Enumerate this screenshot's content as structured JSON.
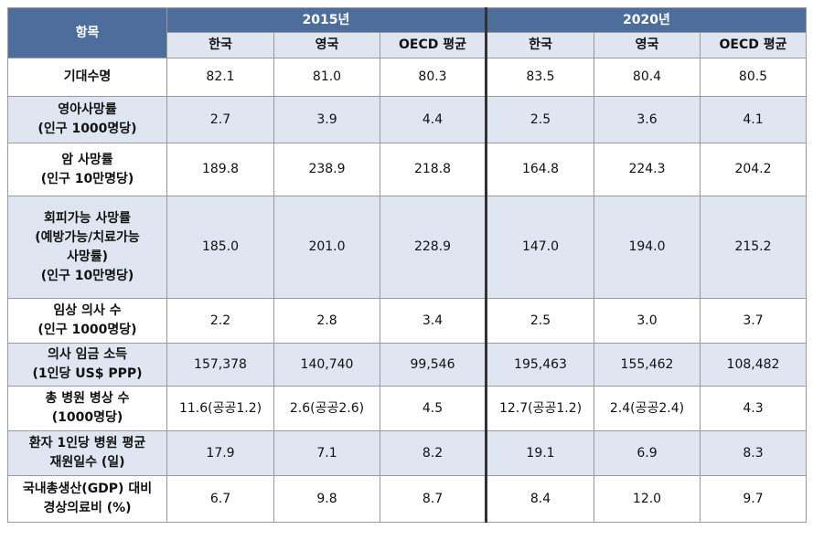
{
  "header": {
    "item_label": "항목",
    "year_2015": "2015년",
    "year_2020": "2020년",
    "columns_2015": [
      "한국",
      "영국",
      "OECD 평균"
    ],
    "columns_2020": [
      "한국",
      "영국",
      "OECD 평균"
    ]
  },
  "rows": [
    {
      "label": [
        "기대수명"
      ],
      "values": [
        "82.1",
        "81.0",
        "80.3",
        "83.5",
        "80.4",
        "80.5"
      ]
    },
    {
      "label": [
        "영아사망률",
        "(인구 1000명당)"
      ],
      "values": [
        "2.7",
        "3.9",
        "4.4",
        "2.5",
        "3.6",
        "4.1"
      ]
    },
    {
      "label": [
        "암 사망률",
        "(인구 10만명당)"
      ],
      "values": [
        "189.8",
        "238.9",
        "218.8",
        "164.8",
        "224.3",
        "204.2"
      ]
    },
    {
      "label": [
        "회피가능 사망률",
        "(예방가능/치료가능",
        "사망률)",
        "(인구 10만명당)"
      ],
      "values": [
        "185.0",
        "201.0",
        "228.9",
        "147.0",
        "194.0",
        "215.2"
      ]
    },
    {
      "label": [
        "임상 의사 수",
        "(인구 1000명당)"
      ],
      "values": [
        "2.2",
        "2.8",
        "3.4",
        "2.5",
        "3.0",
        "3.7"
      ]
    },
    {
      "label": [
        "의사 임금 소득",
        "(1인당 US$ PPP)"
      ],
      "values": [
        "157,378",
        "140,740",
        "99,546",
        "195,463",
        "155,462",
        "108,482"
      ]
    },
    {
      "label": [
        "총 병원 병상 수",
        "(1000명당)"
      ],
      "values": [
        "11.6(공공1.2)",
        "2.6(공공2.6)",
        "4.5",
        "12.7(공공1.2)",
        "2.4(공공2.4)",
        "4.3"
      ]
    },
    {
      "label": [
        "환자 1인당 병원 평균",
        "재원일수 (일)"
      ],
      "values": [
        "17.9",
        "7.1",
        "8.2",
        "19.1",
        "6.9",
        "8.3"
      ]
    },
    {
      "label": [
        "국내총생산(GDP) 대비",
        "경상의료비 (%)"
      ],
      "values": [
        "6.7",
        "9.8",
        "8.7",
        "8.4",
        "12.0",
        "9.7"
      ]
    }
  ]
}
